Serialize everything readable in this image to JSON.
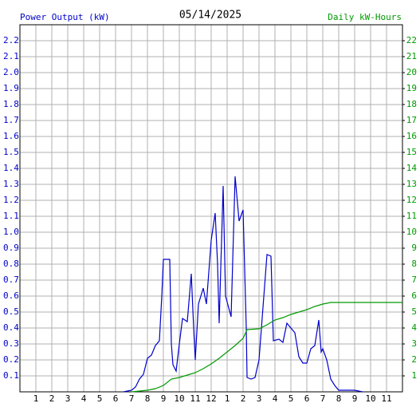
{
  "chart_data": {
    "type": "line",
    "title": "05/14/2025",
    "xlim": [
      0,
      24
    ],
    "xticks": [
      1,
      2,
      3,
      4,
      5,
      6,
      7,
      8,
      9,
      10,
      11,
      12,
      {
        "value": 13,
        "label": "1"
      },
      {
        "value": 14,
        "label": "2"
      },
      {
        "value": 15,
        "label": "3"
      },
      {
        "value": 16,
        "label": "4"
      },
      {
        "value": 17,
        "label": "5"
      },
      {
        "value": 18,
        "label": "6"
      },
      {
        "value": 19,
        "label": "7"
      },
      {
        "value": 20,
        "label": "8"
      },
      {
        "value": 21,
        "label": "9"
      },
      {
        "value": 22,
        "label": "10"
      },
      {
        "value": 23,
        "label": "11"
      }
    ],
    "ylim": [
      0,
      2.3
    ],
    "yticks": [
      0.1,
      0.2,
      0.3,
      0.4,
      0.5,
      0.6,
      0.7,
      0.8,
      0.9,
      {
        "value": 1,
        "label": "1.0"
      },
      1.1,
      1.2,
      1.3,
      1.4,
      1.5,
      1.6,
      1.7,
      1.8,
      1.9,
      {
        "value": 2,
        "label": "2.0"
      },
      2.1,
      2.2
    ],
    "y2lim": [
      0,
      23
    ],
    "y2ticks": [
      1,
      2,
      3,
      4,
      5,
      6,
      7,
      8,
      9,
      10,
      11,
      12,
      13,
      14,
      15,
      16,
      17,
      18,
      19,
      20,
      21,
      22
    ],
    "grid": true,
    "series": [
      {
        "name": "Power Output (kW)",
        "color": "#0000cc",
        "axis": "y",
        "x": [
          6.5,
          7,
          7.25,
          7.5,
          7.75,
          8,
          8.25,
          8.5,
          8.75,
          8.9,
          9,
          9.4,
          9.5,
          9.6,
          9.8,
          10,
          10.2,
          10.5,
          10.75,
          10.9,
          11,
          11.2,
          11.5,
          11.7,
          12,
          12.25,
          12.4,
          12.5,
          12.75,
          12.9,
          13.25,
          13.5,
          13.75,
          14,
          14.2,
          14.25,
          14.5,
          14.75,
          15,
          15.5,
          15.75,
          15.9,
          16.25,
          16.5,
          16.75,
          17,
          17.25,
          17.5,
          17.75,
          18,
          18.25,
          18.5,
          18.75,
          18.9,
          19,
          19.25,
          19.5,
          19.75,
          20,
          20.5,
          21,
          21.5
        ],
        "values": [
          0,
          0.01,
          0.03,
          0.08,
          0.11,
          0.21,
          0.23,
          0.29,
          0.32,
          0.6,
          0.83,
          0.83,
          0.3,
          0.17,
          0.13,
          0.3,
          0.46,
          0.44,
          0.74,
          0.4,
          0.2,
          0.55,
          0.65,
          0.55,
          0.95,
          1.12,
          0.8,
          0.43,
          1.29,
          0.6,
          0.47,
          1.35,
          1.07,
          1.14,
          0.4,
          0.09,
          0.08,
          0.09,
          0.2,
          0.86,
          0.85,
          0.32,
          0.33,
          0.31,
          0.43,
          0.4,
          0.37,
          0.22,
          0.18,
          0.18,
          0.27,
          0.29,
          0.45,
          0.25,
          0.27,
          0.2,
          0.08,
          0.04,
          0.01,
          0.01,
          0.01,
          0
        ]
      },
      {
        "name": "Daily kW-Hours",
        "color": "#009900",
        "axis": "y2",
        "x": [
          7,
          7.5,
          8,
          8.5,
          9,
          9.5,
          10,
          10.5,
          11,
          11.5,
          12,
          12.5,
          13,
          13.5,
          14,
          14.25,
          15,
          15.5,
          16,
          16.5,
          17,
          17.5,
          18,
          18.5,
          19,
          19.5,
          20,
          24
        ],
        "values": [
          0,
          0.05,
          0.1,
          0.2,
          0.4,
          0.8,
          0.9,
          1.05,
          1.2,
          1.45,
          1.75,
          2.1,
          2.5,
          2.9,
          3.35,
          3.9,
          3.95,
          4.2,
          4.5,
          4.65,
          4.85,
          5,
          5.15,
          5.35,
          5.5,
          5.6,
          5.6,
          5.6
        ]
      }
    ]
  }
}
